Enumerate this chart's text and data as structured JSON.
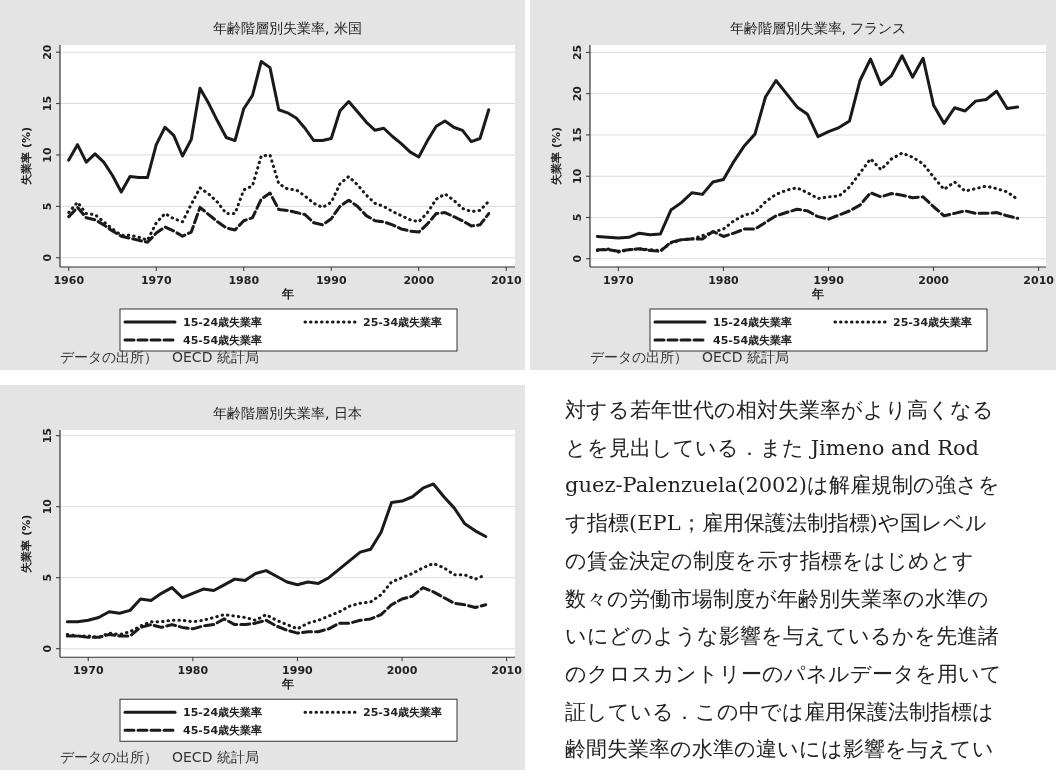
{
  "chart_data": [
    {
      "type": "line",
      "title": "年齢階層別失業率, 米国",
      "xlabel": "年",
      "ylabel": "失業率 (%)",
      "xlim": [
        1959,
        2011
      ],
      "xticks": [
        1960,
        1970,
        1980,
        1990,
        2000,
        2010
      ],
      "ylim": [
        -0.9,
        20.7
      ],
      "yticks": [
        0,
        5,
        10,
        15,
        20
      ],
      "grid": "y",
      "legend": "bottom",
      "annotations": [
        "データの出所）　OECD 統計局"
      ],
      "x": [
        1960,
        1961,
        1962,
        1963,
        1964,
        1965,
        1966,
        1967,
        1968,
        1969,
        1970,
        1971,
        1972,
        1973,
        1974,
        1975,
        1976,
        1977,
        1978,
        1979,
        1980,
        1981,
        1982,
        1983,
        1984,
        1985,
        1986,
        1987,
        1988,
        1989,
        1990,
        1991,
        1992,
        1993,
        1994,
        1995,
        1996,
        1997,
        1998,
        1999,
        2000,
        2001,
        2002,
        2003,
        2004,
        2005,
        2006,
        2007,
        2008
      ],
      "series": [
        {
          "name": "15-24歳失業率",
          "color": "#1a1a1a",
          "line_style": "solid",
          "values": [
            9.5,
            11.0,
            9.3,
            10.1,
            9.3,
            8.0,
            6.4,
            7.9,
            7.8,
            7.8,
            11.0,
            12.7,
            11.9,
            9.9,
            11.5,
            16.5,
            15.0,
            13.3,
            11.7,
            11.4,
            14.5,
            15.8,
            19.1,
            18.5,
            14.4,
            14.1,
            13.6,
            12.6,
            11.4,
            11.4,
            11.6,
            14.3,
            15.2,
            14.2,
            13.2,
            12.4,
            12.6,
            11.8,
            11.1,
            10.3,
            9.8,
            11.4,
            12.8,
            13.3,
            12.7,
            12.4,
            11.3,
            11.6,
            14.4
          ]
        },
        {
          "name": "25-34歳失業率",
          "color": "#1a1a1a",
          "line_style": "dotted",
          "values": [
            4.4,
            5.4,
            4.3,
            4.2,
            3.5,
            2.8,
            2.2,
            2.2,
            2.0,
            1.7,
            3.4,
            4.3,
            3.8,
            3.5,
            5.2,
            6.8,
            6.2,
            5.4,
            4.3,
            4.3,
            6.6,
            7.0,
            9.9,
            10.0,
            7.2,
            6.7,
            6.6,
            6.0,
            5.3,
            4.9,
            5.4,
            7.2,
            7.9,
            7.1,
            6.1,
            5.3,
            5.0,
            4.5,
            4.1,
            3.7,
            3.5,
            4.4,
            5.7,
            6.2,
            5.6,
            4.8,
            4.5,
            4.6,
            5.5
          ]
        },
        {
          "name": "45-54歳失業率",
          "color": "#1a1a1a",
          "line_style": "dashed",
          "values": [
            4.0,
            4.9,
            3.9,
            3.7,
            3.2,
            2.6,
            2.1,
            1.9,
            1.7,
            1.5,
            2.4,
            3.0,
            2.6,
            2.1,
            2.5,
            4.9,
            4.2,
            3.5,
            2.9,
            2.7,
            3.6,
            3.9,
            5.7,
            6.3,
            4.7,
            4.6,
            4.4,
            4.2,
            3.4,
            3.2,
            3.8,
            5.0,
            5.6,
            5.0,
            4.1,
            3.6,
            3.5,
            3.2,
            2.8,
            2.6,
            2.5,
            3.3,
            4.3,
            4.4,
            4.0,
            3.6,
            3.1,
            3.2,
            4.3
          ]
        }
      ]
    },
    {
      "type": "line",
      "title": "年齢階層別失業率, フランス",
      "xlabel": "年",
      "ylabel": "失業率 (%)",
      "xlim": [
        1967.3,
        2010.7
      ],
      "xticks": [
        1970,
        1980,
        1990,
        2000,
        2010
      ],
      "ylim": [
        -1.0,
        25.9
      ],
      "yticks": [
        0,
        5,
        10,
        15,
        20,
        25
      ],
      "grid": "y",
      "legend": "bottom",
      "annotations": [
        "データの出所）　OECD 統計局"
      ],
      "x": [
        1968,
        1969,
        1970,
        1971,
        1972,
        1973,
        1974,
        1975,
        1976,
        1977,
        1978,
        1979,
        1980,
        1981,
        1982,
        1983,
        1984,
        1985,
        1986,
        1987,
        1988,
        1989,
        1990,
        1991,
        1992,
        1993,
        1994,
        1995,
        1996,
        1997,
        1998,
        1999,
        2000,
        2001,
        2002,
        2003,
        2004,
        2005,
        2006,
        2007,
        2008
      ],
      "series": [
        {
          "name": "15-24歳失業率",
          "color": "#1a1a1a",
          "line_style": "solid",
          "values": [
            2.7,
            2.6,
            2.5,
            2.6,
            3.1,
            2.9,
            3.0,
            5.9,
            6.8,
            8.0,
            7.8,
            9.3,
            9.6,
            11.8,
            13.7,
            15.1,
            19.6,
            21.6,
            20.0,
            18.4,
            17.5,
            14.8,
            15.4,
            15.9,
            16.7,
            21.6,
            24.2,
            21.1,
            22.2,
            24.6,
            22.0,
            24.3,
            18.6,
            16.4,
            18.3,
            17.9,
            19.1,
            19.3,
            20.3,
            18.2,
            18.4
          ]
        },
        {
          "name": "25-34歳失業率",
          "color": "#1a1a1a",
          "line_style": "dotted",
          "values": [
            1.0,
            1.2,
            0.8,
            1.1,
            1.2,
            1.1,
            1.0,
            1.9,
            2.3,
            2.4,
            2.8,
            3.2,
            3.6,
            4.6,
            5.3,
            5.6,
            6.9,
            7.8,
            8.3,
            8.6,
            8.0,
            7.3,
            7.5,
            7.6,
            8.7,
            10.4,
            12.1,
            10.8,
            12.1,
            12.8,
            12.3,
            11.5,
            9.9,
            8.4,
            9.3,
            8.2,
            8.5,
            8.8,
            8.5,
            8.1,
            7.2
          ]
        },
        {
          "name": "45-54歳失業率",
          "color": "#1a1a1a",
          "line_style": "dashed",
          "values": [
            1.1,
            1.1,
            0.9,
            1.1,
            1.2,
            1.0,
            0.9,
            2.0,
            2.3,
            2.4,
            2.4,
            3.3,
            2.7,
            3.1,
            3.6,
            3.6,
            4.4,
            5.2,
            5.6,
            6.0,
            5.8,
            5.1,
            4.8,
            5.3,
            5.8,
            6.5,
            8.0,
            7.5,
            7.9,
            7.7,
            7.4,
            7.5,
            6.3,
            5.2,
            5.5,
            5.8,
            5.5,
            5.5,
            5.6,
            5.2,
            4.9
          ]
        }
      ]
    },
    {
      "type": "line",
      "title": "年齢階層別失業率, 日本",
      "xlabel": "年",
      "ylabel": "失業率 (%)",
      "xlim": [
        1967.3,
        2010.8
      ],
      "xticks": [
        1970,
        1980,
        1990,
        2000,
        2010
      ],
      "ylim": [
        -0.6,
        15.4
      ],
      "yticks": [
        0,
        5,
        10,
        15
      ],
      "grid": "y",
      "legend": "bottom",
      "annotations": [
        "データの出所）　OECD 統計局"
      ],
      "x": [
        1968,
        1969,
        1970,
        1971,
        1972,
        1973,
        1974,
        1975,
        1976,
        1977,
        1978,
        1979,
        1980,
        1981,
        1982,
        1983,
        1984,
        1985,
        1986,
        1987,
        1988,
        1989,
        1990,
        1991,
        1992,
        1993,
        1994,
        1995,
        1996,
        1997,
        1998,
        1999,
        2000,
        2001,
        2002,
        2003,
        2004,
        2005,
        2006,
        2007,
        2008
      ],
      "series": [
        {
          "name": "15-24歳失業率",
          "color": "#1a1a1a",
          "line_style": "solid",
          "values": [
            1.9,
            1.9,
            2.0,
            2.2,
            2.6,
            2.5,
            2.7,
            3.5,
            3.4,
            3.9,
            4.3,
            3.6,
            3.9,
            4.2,
            4.1,
            4.5,
            4.9,
            4.8,
            5.3,
            5.5,
            5.1,
            4.7,
            4.5,
            4.7,
            4.6,
            5.0,
            5.6,
            6.2,
            6.8,
            7.0,
            8.2,
            10.3,
            10.4,
            10.7,
            11.3,
            11.6,
            10.7,
            9.9,
            8.8,
            8.3,
            7.9
          ]
        },
        {
          "name": "25-34歳失業率",
          "color": "#1a1a1a",
          "line_style": "dotted",
          "values": [
            1.0,
            0.9,
            0.9,
            0.8,
            1.1,
            1.0,
            1.2,
            1.6,
            1.9,
            1.9,
            2.0,
            2.0,
            1.9,
            2.0,
            2.2,
            2.4,
            2.3,
            2.2,
            2.0,
            2.4,
            2.0,
            1.7,
            1.4,
            1.8,
            2.0,
            2.3,
            2.6,
            3.0,
            3.2,
            3.3,
            3.8,
            4.7,
            5.0,
            5.3,
            5.7,
            6.0,
            5.7,
            5.2,
            5.2,
            4.9,
            5.2
          ]
        },
        {
          "name": "45-54歳失業率",
          "color": "#1a1a1a",
          "line_style": "dashed",
          "values": [
            0.9,
            0.9,
            0.8,
            0.8,
            1.0,
            0.9,
            0.9,
            1.5,
            1.7,
            1.5,
            1.7,
            1.5,
            1.4,
            1.6,
            1.7,
            2.1,
            1.7,
            1.7,
            1.8,
            2.0,
            1.6,
            1.3,
            1.1,
            1.2,
            1.2,
            1.4,
            1.8,
            1.8,
            2.0,
            2.1,
            2.4,
            3.1,
            3.5,
            3.7,
            4.3,
            4.0,
            3.6,
            3.2,
            3.1,
            2.9,
            3.1
          ]
        }
      ]
    },
    {
      "type": "other",
      "annotations": [
        "対する若年世代の相対失業率がより高くなる",
        "とを見出している．また Jimeno and Rod",
        "guez-Palenzuela(2002)は解雇規制の強さを",
        "す指標(EPL；雇用保護法制指標)や国レベル",
        "の賃金決定の制度を示す指標をはじめとす",
        "数々の労働市場制度が年齢別失業率の水準の",
        "いにどのような影響を与えているかを先進諸",
        "のクロスカントリーのパネルデータを用いて",
        "証している．この中では雇用保護法制指標は",
        "齢間失業率の水準の違いには影響を与えてい"
      ]
    }
  ]
}
